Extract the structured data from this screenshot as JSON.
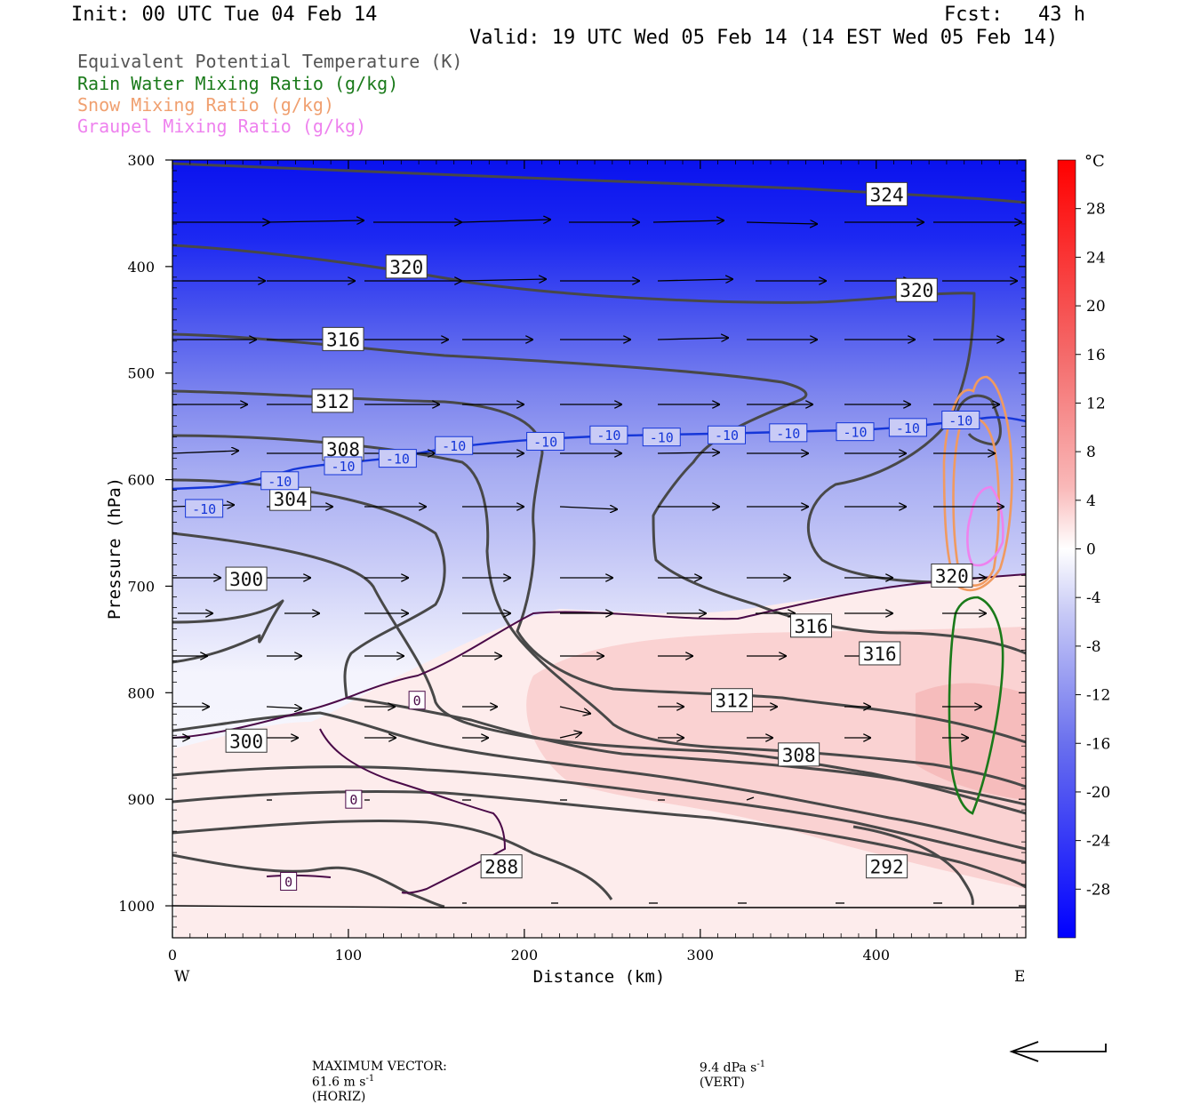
{
  "header": {
    "init": "Init: 00 UTC Tue 04 Feb 14",
    "fcst": "Fcst:   43 h",
    "valid": "Valid: 19 UTC Wed 05 Feb 14 (14 EST Wed 05 Feb 14)"
  },
  "legend": [
    {
      "text": "Equivalent Potential Temperature (K)",
      "color": "#555555"
    },
    {
      "text": "Rain Water Mixing Ratio (g/kg)",
      "color": "#1a7a1a"
    },
    {
      "text": "Snow Mixing Ratio (g/kg)",
      "color": "#f0a070"
    },
    {
      "text": "Graupel Mixing Ratio (g/kg)",
      "color": "#ee82ee"
    }
  ],
  "chart_data": {
    "type": "cross-section",
    "xlabel": "Distance (km)",
    "ylabel": "Pressure (hPa)",
    "xlim": [
      0,
      485
    ],
    "ylim": [
      1030,
      300
    ],
    "x_ticks": [
      0,
      100,
      200,
      300,
      400
    ],
    "y_ticks": [
      300,
      400,
      500,
      600,
      700,
      800,
      900,
      1000
    ],
    "x_end_labels": {
      "left": "W",
      "right": "E"
    },
    "colorbar": {
      "unit": "°C",
      "range": [
        -32,
        32
      ],
      "tick_labels": [
        28,
        24,
        20,
        16,
        12,
        8,
        4,
        0,
        -4,
        -8,
        -12,
        -16,
        -20,
        -24,
        -28
      ]
    },
    "theta_e_contour_labels": [
      {
        "text": "324",
        "x": 406,
        "p": 332
      },
      {
        "text": "320",
        "x": 133,
        "p": 400
      },
      {
        "text": "320",
        "x": 423,
        "p": 422
      },
      {
        "text": "316",
        "x": 97,
        "p": 468
      },
      {
        "text": "312",
        "x": 91,
        "p": 526
      },
      {
        "text": "308",
        "x": 97,
        "p": 571
      },
      {
        "text": "304",
        "x": 67,
        "p": 618
      },
      {
        "text": "300",
        "x": 42,
        "p": 693
      },
      {
        "text": "320",
        "x": 443,
        "p": 690
      },
      {
        "text": "316",
        "x": 363,
        "p": 737
      },
      {
        "text": "316",
        "x": 402,
        "p": 763
      },
      {
        "text": "312",
        "x": 318,
        "p": 807
      },
      {
        "text": "308",
        "x": 356,
        "p": 858
      },
      {
        "text": "300",
        "x": 42,
        "p": 845
      },
      {
        "text": "288",
        "x": 187,
        "p": 963
      },
      {
        "text": "292",
        "x": 406,
        "p": 963
      }
    ],
    "temperature_contour_labels": [
      {
        "text": "-10",
        "x": 18,
        "p": 627
      },
      {
        "text": "-10",
        "x": 61,
        "p": 601
      },
      {
        "text": "-10",
        "x": 97,
        "p": 587
      },
      {
        "text": "-10",
        "x": 128,
        "p": 580
      },
      {
        "text": "-10",
        "x": 160,
        "p": 568
      },
      {
        "text": "-10",
        "x": 212,
        "p": 564
      },
      {
        "text": "-10",
        "x": 248,
        "p": 558
      },
      {
        "text": "-10",
        "x": 278,
        "p": 560
      },
      {
        "text": "-10",
        "x": 315,
        "p": 558
      },
      {
        "text": "-10",
        "x": 350,
        "p": 556
      },
      {
        "text": "-10",
        "x": 388,
        "p": 555
      },
      {
        "text": "-10",
        "x": 418,
        "p": 551
      },
      {
        "text": "-10",
        "x": 448,
        "p": 544
      },
      {
        "text": "0",
        "x": 139,
        "p": 807
      },
      {
        "text": "0",
        "x": 103,
        "p": 900
      },
      {
        "text": "0",
        "x": 66,
        "p": 977
      }
    ]
  },
  "footer": {
    "label": "MAXIMUM VECTOR:",
    "horiz_value": "61.6 m s",
    "horiz_exp": "-1",
    "horiz_tag": "(HORIZ)",
    "vert_value": "9.4 dPa s",
    "vert_exp": "-1",
    "vert_tag": "(VERT)"
  }
}
